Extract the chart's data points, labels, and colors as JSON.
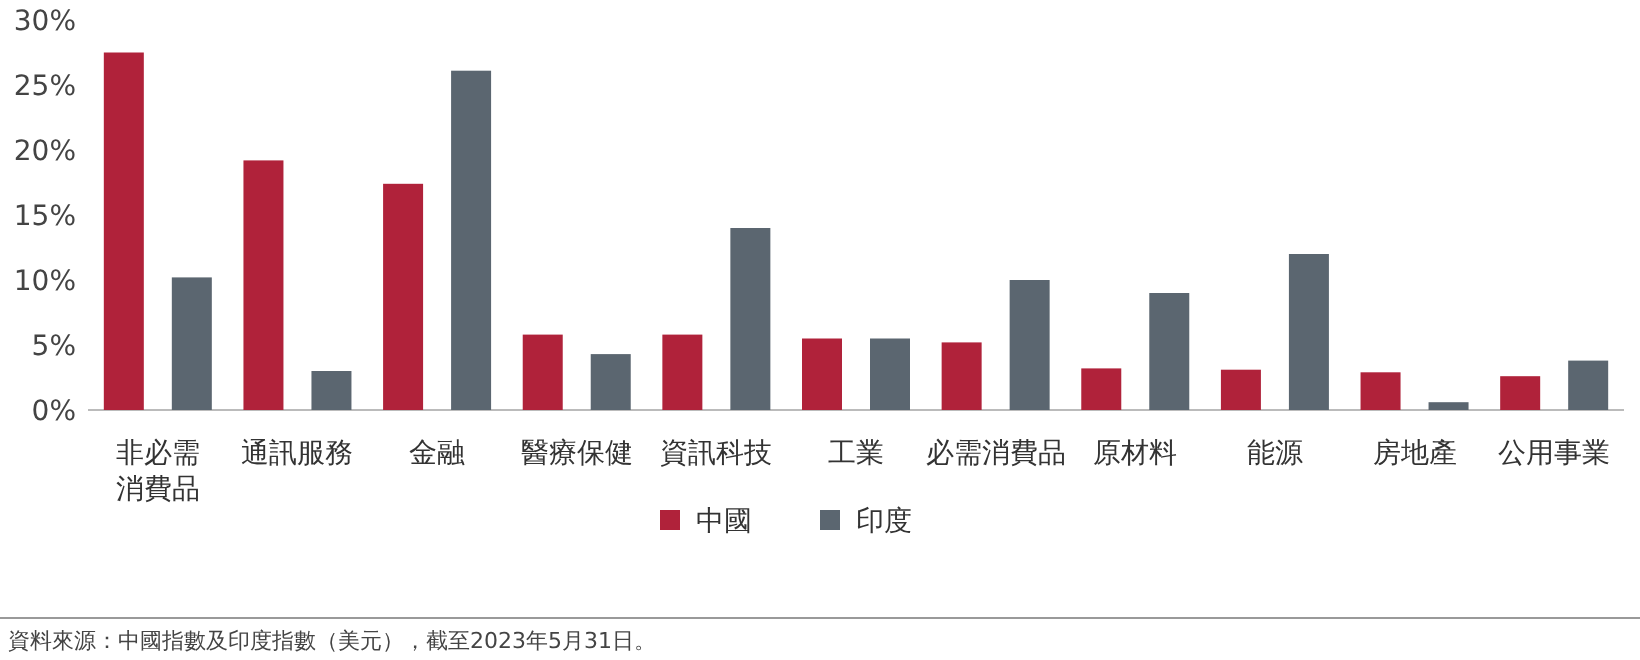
{
  "chart_data": {
    "type": "bar",
    "categories": [
      "非必需消費品",
      "通訊服務",
      "金融",
      "醫療保健",
      "資訊科技",
      "工業",
      "必需消費品",
      "原材料",
      "能源",
      "房地產",
      "公用事業"
    ],
    "series": [
      {
        "name": "中國",
        "color": "#b0223a",
        "values": [
          27.5,
          19.2,
          17.4,
          5.8,
          5.8,
          5.5,
          5.2,
          3.2,
          3.1,
          2.9,
          2.6
        ]
      },
      {
        "name": "印度",
        "color": "#5b6670",
        "values": [
          10.2,
          3.0,
          26.1,
          4.3,
          14.0,
          5.5,
          10.0,
          9.0,
          12.0,
          0.6,
          3.8
        ]
      }
    ],
    "ylim": [
      0,
      30
    ],
    "yticks": [
      {
        "value": 0,
        "label": "0%"
      },
      {
        "value": 5,
        "label": "5%"
      },
      {
        "value": 10,
        "label": "10%"
      },
      {
        "value": 15,
        "label": "15%"
      },
      {
        "value": 20,
        "label": "20%"
      },
      {
        "value": 25,
        "label": "25%"
      },
      {
        "value": 30,
        "label": "30%"
      }
    ],
    "grid": false,
    "legend": "bottom",
    "annotations": [
      "資料來源：中國指數及印度指數（美元），截至2023年5月31日。"
    ]
  }
}
